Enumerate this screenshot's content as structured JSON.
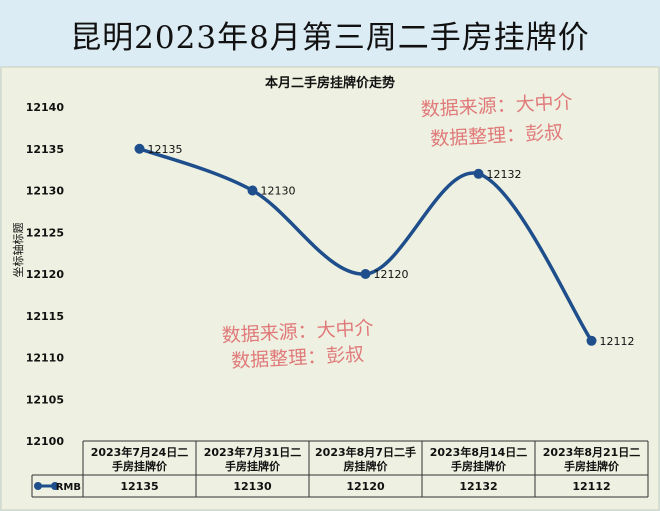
{
  "banner_title": "昆明2023年8月第三周二手房挂牌价",
  "watermark": {
    "line1": "数据来源：大中介",
    "line2": "数据整理：彭叔",
    "color": "#e07a7a"
  },
  "chart_data": {
    "type": "line",
    "title": "本月二手房挂牌价走势",
    "ylabel": "坐标轴标题",
    "xlabel": "",
    "ylim": [
      12100,
      12140
    ],
    "yticks": [
      12100,
      12105,
      12110,
      12115,
      12120,
      12125,
      12130,
      12135,
      12140
    ],
    "grid": false,
    "smooth": true,
    "categories": [
      "2023年7月24日二手房挂牌价",
      "2023年7月31日二手房挂牌价",
      "2023年8月7日二手房挂牌价",
      "2023年8月14日二手房挂牌价",
      "2023年8月21日二手房挂牌价"
    ],
    "series": [
      {
        "name": "RMB",
        "values": [
          12135,
          12130,
          12120,
          12132,
          12112
        ],
        "color": "#1f4e8c"
      }
    ],
    "data_labels": true,
    "data_table": true,
    "background": "#eef1e1"
  }
}
